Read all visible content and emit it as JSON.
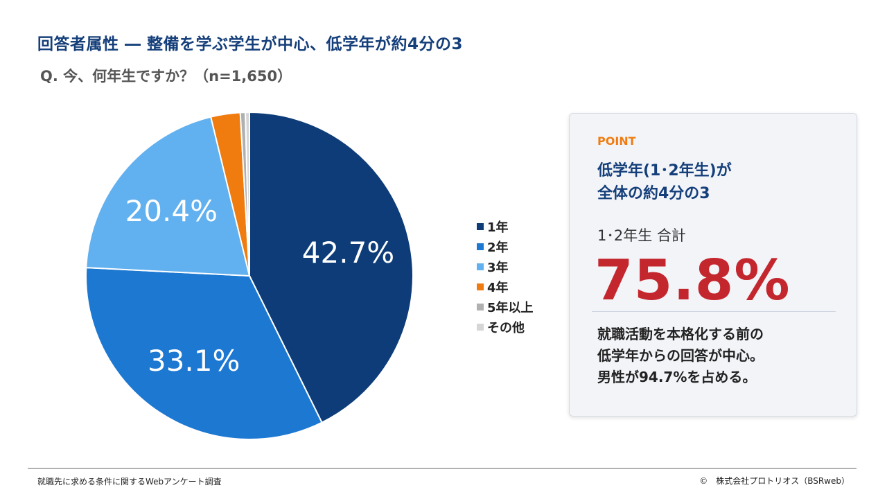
{
  "header": {
    "title": "回答者属性 ― 整備を学ぶ学生が中心、低学年が約4分の3",
    "question": "Q. 今、何年生ですか？（n=1,650）"
  },
  "chart_data": {
    "type": "pie",
    "labels": [
      "1年",
      "2年",
      "3年",
      "4年",
      "5年以上",
      "その他"
    ],
    "values": [
      42.7,
      33.1,
      20.4,
      2.9,
      0.5,
      0.4
    ],
    "value_labels": [
      "42.7%",
      "33.1%",
      "20.4%",
      "",
      "",
      ""
    ],
    "colors": [
      "#0d3c78",
      "#1d78d2",
      "#61b0ef",
      "#f07c10",
      "#b0b0b0",
      "#d6d6d6"
    ],
    "legend": "right"
  },
  "panel": {
    "label": "POINT",
    "headline": "低学年(1･2年生)が\n全体の約4分の3",
    "subheading": "1･2年生 合計",
    "big_value": "75.8%",
    "body": "就職活動を本格化する前の\n低学年からの回答が中心。\n男性が94.7%を占める。"
  },
  "footer": {
    "source": "就職先に求める条件に関するWebアンケート調査",
    "copyright": "©　株式会社プロトリオス（BSRweb）"
  }
}
